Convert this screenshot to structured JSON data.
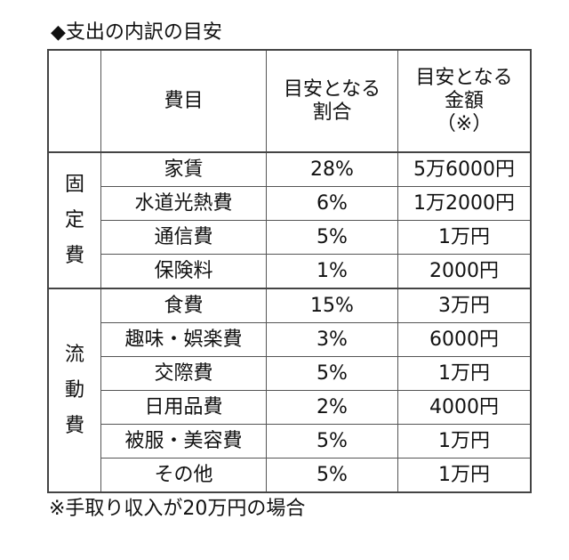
{
  "title": "◆支出の内訳の目安",
  "table": {
    "headers": [
      "",
      "費目",
      "目安となる\n割合",
      "目安となる\n金額\n（※）"
    ],
    "header_lines": {
      "item": "費目",
      "ratio": [
        "目安となる",
        "割合"
      ],
      "amount": [
        "目安となる",
        "金額",
        "（※）"
      ]
    },
    "groups": [
      {
        "label": [
          "固",
          "定",
          "費"
        ],
        "rows": [
          {
            "item": "家賃",
            "ratio": "28%",
            "amount": "5万6000円"
          },
          {
            "item": "水道光熱費",
            "ratio": "6%",
            "amount": "1万2000円"
          },
          {
            "item": "通信費",
            "ratio": "5%",
            "amount": "1万円"
          },
          {
            "item": "保険料",
            "ratio": "1%",
            "amount": "2000円"
          }
        ]
      },
      {
        "label": [
          "流",
          "動",
          "費"
        ],
        "rows": [
          {
            "item": "食費",
            "ratio": "15%",
            "amount": "3万円"
          },
          {
            "item": "趣味・娯楽費",
            "ratio": "3%",
            "amount": "6000円"
          },
          {
            "item": "交際費",
            "ratio": "5%",
            "amount": "1万円"
          },
          {
            "item": "日用品費",
            "ratio": "2%",
            "amount": "4000円"
          },
          {
            "item": "被服・美容費",
            "ratio": "5%",
            "amount": "1万円"
          },
          {
            "item": "その他",
            "ratio": "5%",
            "amount": "1万円"
          }
        ]
      }
    ]
  },
  "footnote": "※手取り収入が20万円の場合"
}
